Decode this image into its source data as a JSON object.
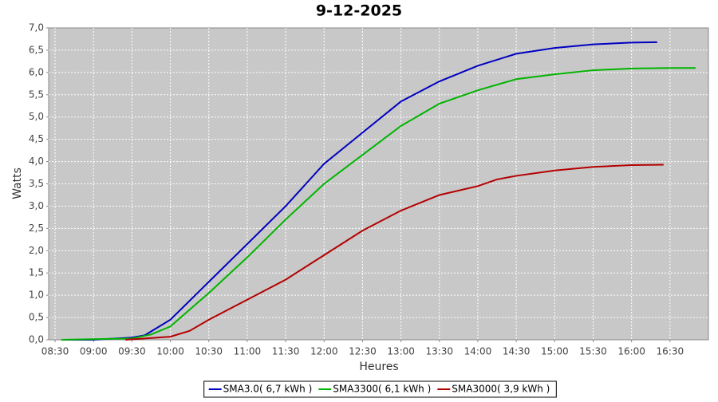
{
  "chart_data": {
    "type": "line",
    "title": "9-12-2025",
    "xlabel": "Heures",
    "ylabel": "Watts",
    "xlim": [
      "08:25",
      "17:00"
    ],
    "xticks": [
      "08:30",
      "09:00",
      "09:30",
      "10:00",
      "10:30",
      "11:00",
      "11:30",
      "12:00",
      "12:30",
      "13:00",
      "13:30",
      "14:00",
      "14:30",
      "15:00",
      "15:30",
      "16:00",
      "16:30"
    ],
    "ylim": [
      0,
      7
    ],
    "yticks": [
      {
        "value": 0,
        "label": "0,0"
      },
      {
        "value": 0.5,
        "label": "0,5"
      },
      {
        "value": 1,
        "label": "1,0"
      },
      {
        "value": 1.5,
        "label": "1,5"
      },
      {
        "value": 2,
        "label": "2,0"
      },
      {
        "value": 2.5,
        "label": "2,5"
      },
      {
        "value": 3,
        "label": "3,0"
      },
      {
        "value": 3.5,
        "label": "3,5"
      },
      {
        "value": 4,
        "label": "4,0"
      },
      {
        "value": 4.5,
        "label": "4,5"
      },
      {
        "value": 5,
        "label": "5,0"
      },
      {
        "value": 5.5,
        "label": "5,5"
      },
      {
        "value": 6,
        "label": "6,0"
      },
      {
        "value": 6.5,
        "label": "6,5"
      },
      {
        "value": 7,
        "label": "7,0"
      }
    ],
    "grid": true,
    "legend": "bottom",
    "series": [
      {
        "name": "SMA3.0( 6,7 kWh )",
        "color": "#0000c0",
        "x": [
          "08:35",
          "09:00",
          "09:30",
          "09:40",
          "10:00",
          "10:30",
          "11:00",
          "11:30",
          "12:00",
          "12:30",
          "13:00",
          "13:30",
          "14:00",
          "14:30",
          "15:00",
          "15:30",
          "16:00",
          "16:20"
        ],
        "values": [
          0,
          0,
          0.05,
          0.1,
          0.45,
          1.3,
          2.15,
          3.0,
          3.95,
          4.65,
          5.35,
          5.8,
          6.15,
          6.42,
          6.55,
          6.63,
          6.67,
          6.68
        ]
      },
      {
        "name": "SMA3300( 6,1 kWh )",
        "color": "#00b400",
        "x": [
          "08:35",
          "09:30",
          "09:45",
          "10:00",
          "10:30",
          "11:00",
          "11:30",
          "12:00",
          "12:30",
          "13:00",
          "13:30",
          "14:00",
          "14:30",
          "15:00",
          "15:30",
          "16:00",
          "16:30",
          "16:50"
        ],
        "values": [
          0,
          0.03,
          0.12,
          0.3,
          1.05,
          1.85,
          2.7,
          3.5,
          4.15,
          4.8,
          5.3,
          5.6,
          5.85,
          5.96,
          6.05,
          6.09,
          6.1,
          6.1
        ]
      },
      {
        "name": "SMA3000( 3,9 kWh )",
        "color": "#b40000",
        "x": [
          "09:25",
          "10:00",
          "10:15",
          "10:30",
          "11:00",
          "11:30",
          "12:00",
          "12:30",
          "13:00",
          "13:30",
          "14:00",
          "14:15",
          "14:30",
          "15:00",
          "15:30",
          "16:00",
          "16:25"
        ],
        "values": [
          0,
          0.07,
          0.2,
          0.45,
          0.9,
          1.35,
          1.9,
          2.45,
          2.9,
          3.25,
          3.45,
          3.6,
          3.68,
          3.8,
          3.88,
          3.92,
          3.93
        ]
      }
    ]
  }
}
